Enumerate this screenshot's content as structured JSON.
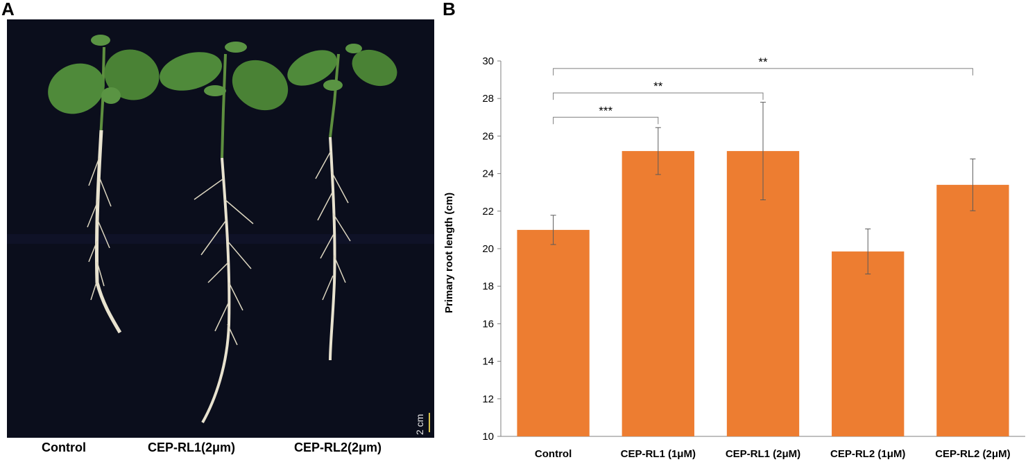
{
  "panels": {
    "a_label": "A",
    "b_label": "B"
  },
  "photo": {
    "captions": [
      "Control",
      "CEP-RL1(2μm)",
      "CEP-RL2(2μm)"
    ],
    "scale_bar_label": "2 cm",
    "background_color": "#0b0e1c",
    "leaf_color": "#4f8a3a",
    "root_color": "#e8e2cf"
  },
  "chart_data": {
    "type": "bar",
    "categories": [
      "Control",
      "CEP-RL1 (1μM)",
      "CEP-RL1 (2μM)",
      "CEP-RL2 (1μM)",
      "CEP-RL2 (2μM)"
    ],
    "values": [
      21.0,
      25.2,
      25.2,
      19.85,
      23.4
    ],
    "errors": [
      0.78,
      1.25,
      2.6,
      1.2,
      1.38
    ],
    "ylabel": "Primary root length (cm)",
    "ylim": [
      10,
      30
    ],
    "yticks": [
      10,
      12,
      14,
      16,
      18,
      20,
      22,
      24,
      26,
      28,
      30
    ],
    "grid": false,
    "bar_color": "#ed7d31",
    "significance": [
      {
        "from": 0,
        "to": 1,
        "label": "***",
        "level": 27.0
      },
      {
        "from": 0,
        "to": 2,
        "label": "**",
        "level": 28.3
      },
      {
        "from": 0,
        "to": 4,
        "label": "**",
        "level": 29.6
      }
    ]
  }
}
